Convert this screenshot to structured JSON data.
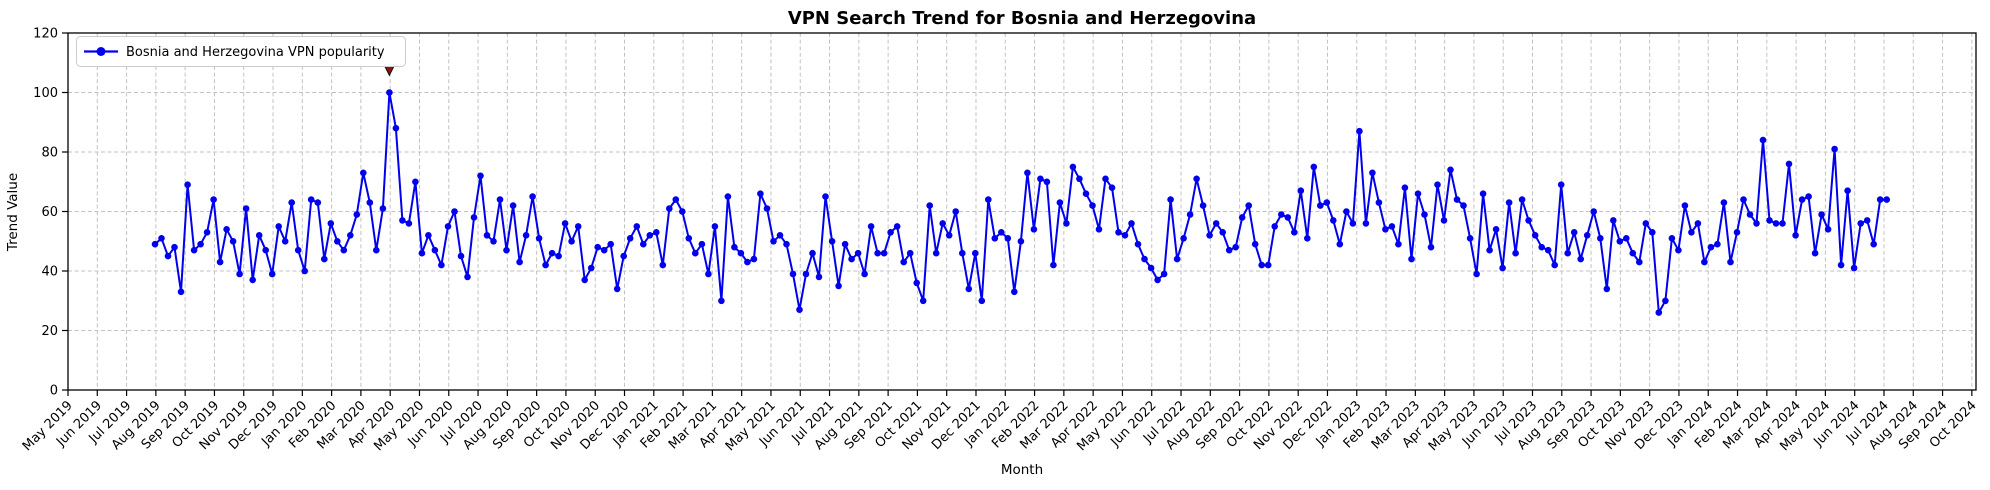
{
  "title": "VPN Search Trend for Bosnia and Herzegovina",
  "legend": {
    "label": "Bosnia and Herzegovina VPN popularity"
  },
  "axes": {
    "xlabel": "Month",
    "ylabel": "Trend Value",
    "ylim": [
      0,
      120
    ],
    "yticks": [
      0,
      20,
      40,
      60,
      80,
      100,
      120
    ],
    "grid": "dashed",
    "xtick_labels": [
      "May 2019",
      "Jun 2019",
      "Jul 2019",
      "Aug 2019",
      "Sep 2019",
      "Oct 2019",
      "Nov 2019",
      "Dec 2019",
      "Jan 2020",
      "Feb 2020",
      "Mar 2020",
      "Apr 2020",
      "May 2020",
      "Jun 2020",
      "Jul 2020",
      "Aug 2020",
      "Sep 2020",
      "Oct 2020",
      "Nov 2020",
      "Dec 2020",
      "Jan 2021",
      "Feb 2021",
      "Mar 2021",
      "Apr 2021",
      "May 2021",
      "Jun 2021",
      "Jul 2021",
      "Aug 2021",
      "Sep 2021",
      "Oct 2021",
      "Nov 2021",
      "Dec 2021",
      "Jan 2022",
      "Feb 2022",
      "Mar 2022",
      "Apr 2022",
      "May 2022",
      "Jun 2022",
      "Jul 2022",
      "Aug 2022",
      "Sep 2022",
      "Oct 2022",
      "Nov 2022",
      "Dec 2022",
      "Jan 2023",
      "Feb 2023",
      "Mar 2023",
      "Apr 2023",
      "May 2023",
      "Jun 2023",
      "Jul 2023",
      "Aug 2023",
      "Sep 2023",
      "Oct 2023",
      "Nov 2023",
      "Dec 2023",
      "Jan 2024",
      "Feb 2024",
      "Mar 2024",
      "Apr 2024",
      "May 2024",
      "Jun 2024",
      "Jul 2024",
      "Aug 2024",
      "Sep 2024",
      "Oct 2024"
    ]
  },
  "colors": {
    "line": "#0000ee",
    "marker": "#0000ee",
    "annotation": "#8b1212",
    "annotation_stem": "#1a1a1a",
    "grid": "#c2c2c2",
    "spine": "#000000",
    "background": "#ffffff",
    "legend_border": "#cccccc"
  },
  "annotation": {
    "type": "down-arrow-marker",
    "at_peak_value": 100,
    "near_label": "Apr 2020"
  },
  "chart_data": {
    "type": "line",
    "title": "VPN Search Trend for Bosnia and Herzegovina",
    "xlabel": "Month",
    "ylabel": "Trend Value",
    "ylim": [
      0,
      120
    ],
    "legend_position": "upper left",
    "grid": true,
    "series_name": "Bosnia and Herzegovina VPN popularity",
    "frequency": "weekly",
    "start": "Aug 2019",
    "end": "Aug 2024",
    "peak": {
      "value": 100,
      "approx_date": "Apr 2020"
    },
    "values": [
      49,
      51,
      45,
      48,
      33,
      69,
      47,
      49,
      53,
      64,
      43,
      54,
      50,
      39,
      61,
      37,
      52,
      47,
      39,
      55,
      50,
      63,
      47,
      40,
      64,
      63,
      44,
      56,
      50,
      47,
      52,
      59,
      73,
      63,
      47,
      61,
      100,
      88,
      57,
      56,
      70,
      46,
      52,
      47,
      42,
      55,
      60,
      45,
      38,
      58,
      72,
      52,
      50,
      64,
      47,
      62,
      43,
      52,
      65,
      51,
      42,
      46,
      45,
      56,
      50,
      55,
      37,
      41,
      48,
      47,
      49,
      34,
      45,
      51,
      55,
      49,
      52,
      53,
      42,
      61,
      64,
      60,
      51,
      46,
      49,
      39,
      55,
      30,
      65,
      48,
      46,
      43,
      44,
      66,
      61,
      50,
      52,
      49,
      39,
      27,
      39,
      46,
      38,
      65,
      50,
      35,
      49,
      44,
      46,
      39,
      55,
      46,
      46,
      53,
      55,
      43,
      46,
      36,
      30,
      62,
      46,
      56,
      52,
      60,
      46,
      34,
      46,
      30,
      64,
      51,
      53,
      51,
      33,
      50,
      73,
      54,
      71,
      70,
      42,
      63,
      56,
      75,
      71,
      66,
      62,
      54,
      71,
      68,
      53,
      52,
      56,
      49,
      44,
      41,
      37,
      39,
      64,
      44,
      51,
      59,
      71,
      62,
      52,
      56,
      53,
      47,
      48,
      58,
      62,
      49,
      42,
      42,
      55,
      59,
      58,
      53,
      67,
      51,
      75,
      62,
      63,
      57,
      49,
      60,
      56,
      87,
      56,
      73,
      63,
      54,
      55,
      49,
      68,
      44,
      66,
      59,
      48,
      69,
      57,
      74,
      64,
      62,
      51,
      39,
      66,
      47,
      54,
      41,
      63,
      46,
      64,
      57,
      52,
      48,
      47,
      42,
      69,
      46,
      53,
      44,
      52,
      60,
      51,
      34,
      57,
      50,
      51,
      46,
      43,
      56,
      53,
      26,
      30,
      51,
      47,
      62,
      53,
      56,
      43,
      48,
      49,
      63,
      43,
      53,
      64,
      59,
      56,
      84,
      57,
      56,
      56,
      76,
      52,
      64,
      65,
      46,
      59,
      54,
      81,
      42,
      67,
      41,
      56,
      57,
      49,
      64,
      64
    ]
  }
}
